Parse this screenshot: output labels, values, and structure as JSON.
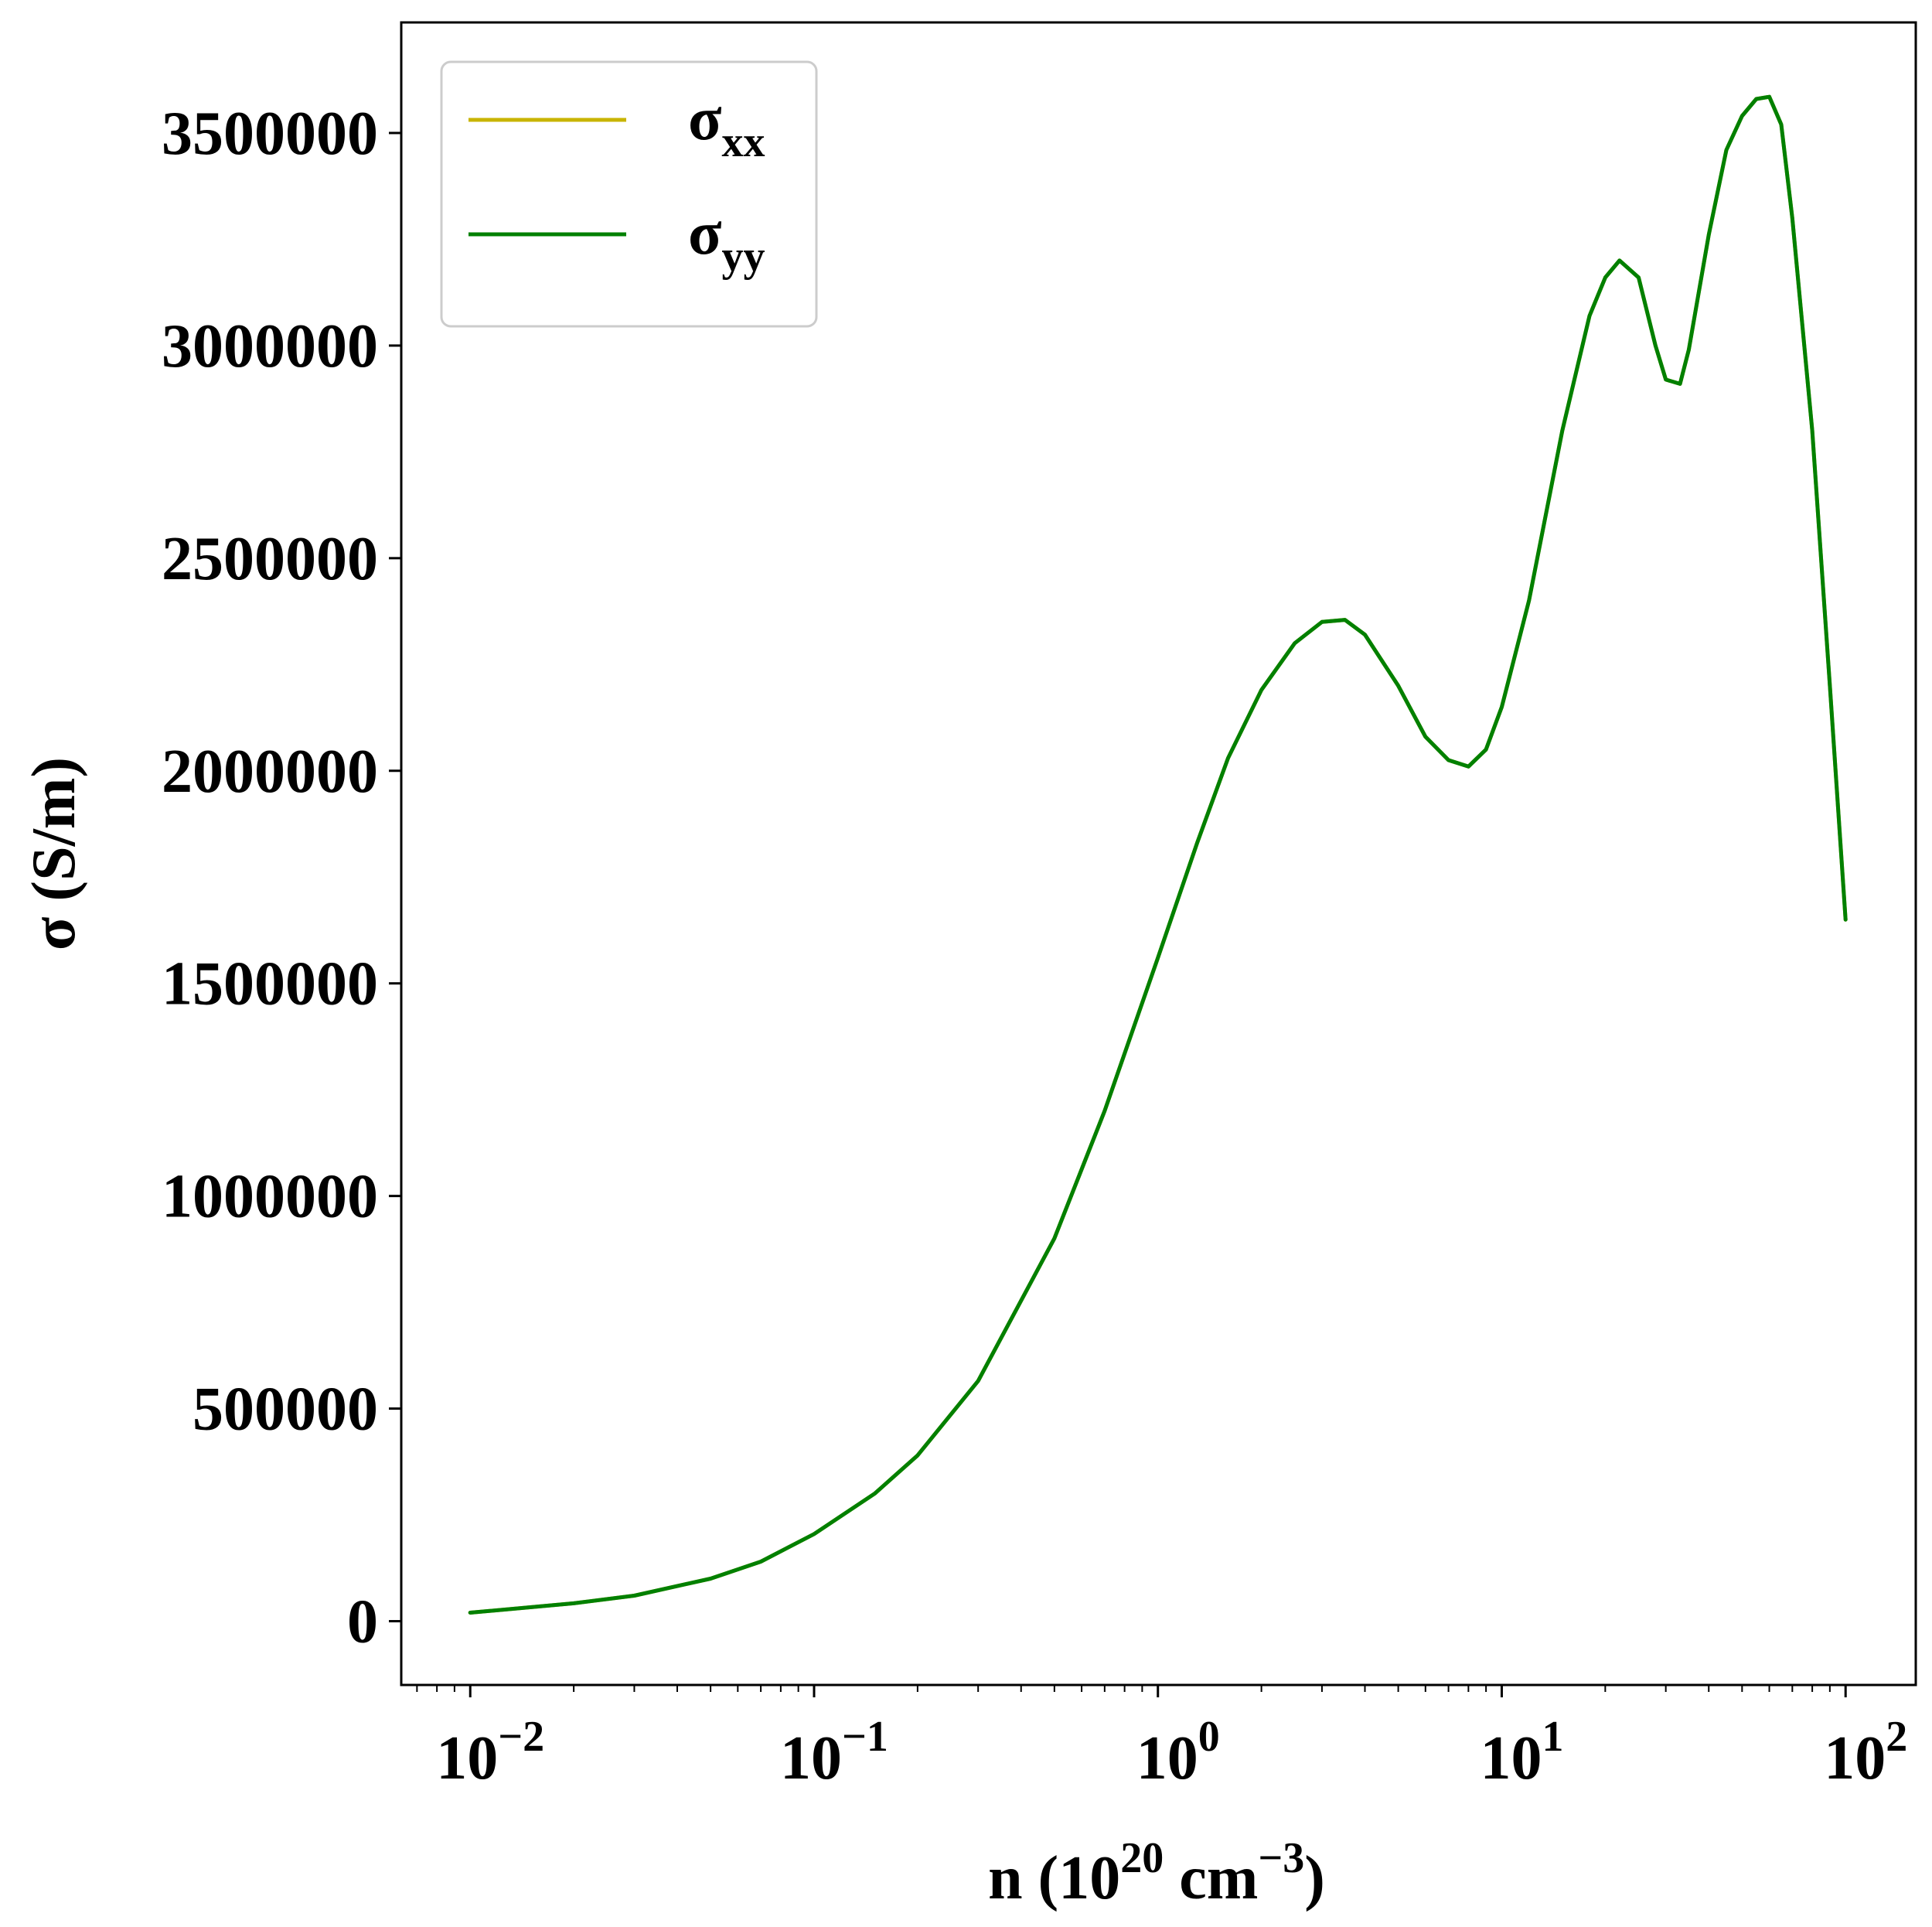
{
  "chart_data": {
    "type": "line",
    "x_scale": "log",
    "xlim": [
      0.0063,
      160
    ],
    "ylim": [
      -150000,
      3760000
    ],
    "xlabel": {
      "prefix": "n (10",
      "sup1": "20",
      "middle": " cm",
      "sup2": "−3",
      "suffix": ")"
    },
    "ylabel": "σ (S/m)",
    "x_ticks": [
      {
        "value": 0.01,
        "base": "10",
        "exp": "−2"
      },
      {
        "value": 0.1,
        "base": "10",
        "exp": "−1"
      },
      {
        "value": 1,
        "base": "10",
        "exp": "0"
      },
      {
        "value": 10,
        "base": "10",
        "exp": "1"
      },
      {
        "value": 100,
        "base": "10",
        "exp": "2"
      }
    ],
    "y_ticks": [
      {
        "value": 0,
        "label": "0"
      },
      {
        "value": 500000,
        "label": "500000"
      },
      {
        "value": 1000000,
        "label": "1000000"
      },
      {
        "value": 1500000,
        "label": "1500000"
      },
      {
        "value": 2000000,
        "label": "2000000"
      },
      {
        "value": 2500000,
        "label": "2500000"
      },
      {
        "value": 3000000,
        "label": "3000000"
      },
      {
        "value": 3500000,
        "label": "3500000"
      }
    ],
    "grid": false,
    "legend_position": "top-left",
    "series": [
      {
        "name": "σxx",
        "name_base": "σ",
        "name_sub": "xx",
        "color": "#c8b400",
        "x": [
          0.01,
          0.02,
          0.03,
          0.05,
          0.07,
          0.1,
          0.15,
          0.2,
          0.3,
          0.5,
          0.7,
          1,
          1.3,
          1.6,
          2,
          2.5,
          3,
          3.5,
          4,
          5,
          6,
          7,
          8,
          9,
          10,
          12,
          15,
          18,
          20,
          22,
          25,
          28,
          30,
          33,
          35,
          40,
          45,
          50,
          55,
          60,
          65,
          70,
          80,
          90,
          100
        ],
        "y": [
          20000,
          42000,
          60000,
          100000,
          140000,
          205000,
          300000,
          390000,
          565000,
          900000,
          1200000,
          1560000,
          1830000,
          2030000,
          2190000,
          2300000,
          2350000,
          2355000,
          2320000,
          2200000,
          2080000,
          2025000,
          2010000,
          2050000,
          2150000,
          2400000,
          2800000,
          3070000,
          3160000,
          3200000,
          3160000,
          3000000,
          2920000,
          2910000,
          2990000,
          3260000,
          3460000,
          3540000,
          3580000,
          3585000,
          3520000,
          3300000,
          2800000,
          2200000,
          1650000
        ]
      },
      {
        "name": "σyy",
        "name_base": "σ",
        "name_sub": "yy",
        "color": "#008000",
        "x": [
          0.01,
          0.02,
          0.03,
          0.05,
          0.07,
          0.1,
          0.15,
          0.2,
          0.3,
          0.5,
          0.7,
          1,
          1.3,
          1.6,
          2,
          2.5,
          3,
          3.5,
          4,
          5,
          6,
          7,
          8,
          9,
          10,
          12,
          15,
          18,
          20,
          22,
          25,
          28,
          30,
          33,
          35,
          40,
          45,
          50,
          55,
          60,
          65,
          70,
          80,
          90,
          100
        ],
        "y": [
          20000,
          42000,
          60000,
          100000,
          140000,
          205000,
          300000,
          390000,
          565000,
          900000,
          1200000,
          1560000,
          1830000,
          2030000,
          2190000,
          2300000,
          2350000,
          2355000,
          2320000,
          2200000,
          2080000,
          2025000,
          2010000,
          2050000,
          2150000,
          2400000,
          2800000,
          3070000,
          3160000,
          3200000,
          3160000,
          3000000,
          2920000,
          2910000,
          2990000,
          3260000,
          3460000,
          3540000,
          3580000,
          3585000,
          3520000,
          3300000,
          2800000,
          2200000,
          1650000
        ]
      }
    ]
  }
}
